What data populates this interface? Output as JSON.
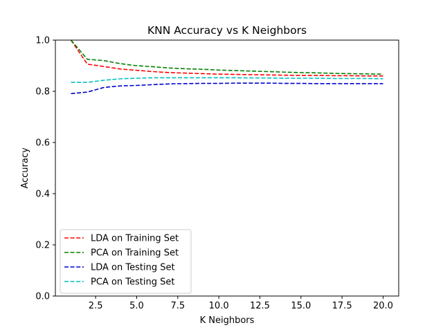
{
  "chart_data": {
    "type": "line",
    "title": "KNN Accuracy vs K Neighbors",
    "xlabel": "K Neighbors",
    "ylabel": "Accuracy",
    "xlim": [
      0.05,
      20.95
    ],
    "ylim": [
      0.0,
      1.0
    ],
    "xticks": [
      2.5,
      5.0,
      7.5,
      10.0,
      12.5,
      15.0,
      17.5,
      20.0
    ],
    "xtick_labels": [
      "2.5",
      "5.0",
      "7.5",
      "10.0",
      "12.5",
      "15.0",
      "17.5",
      "20.0"
    ],
    "yticks": [
      0.0,
      0.2,
      0.4,
      0.6,
      0.8,
      1.0
    ],
    "ytick_labels": [
      "0.0",
      "0.2",
      "0.4",
      "0.6",
      "0.8",
      "1.0"
    ],
    "grid": false,
    "legend_position": "lower-left",
    "x": [
      1,
      2,
      3,
      4,
      5,
      6,
      7,
      8,
      9,
      10,
      11,
      12,
      13,
      14,
      15,
      16,
      17,
      18,
      19,
      20
    ],
    "series": [
      {
        "name": "LDA on Training Set",
        "color": "#ff0000",
        "values": [
          1.0,
          0.906,
          0.897,
          0.887,
          0.882,
          0.877,
          0.873,
          0.871,
          0.869,
          0.867,
          0.866,
          0.865,
          0.864,
          0.863,
          0.862,
          0.862,
          0.861,
          0.861,
          0.86,
          0.86
        ]
      },
      {
        "name": "PCA on Training Set",
        "color": "#008000",
        "values": [
          1.0,
          0.925,
          0.92,
          0.908,
          0.9,
          0.896,
          0.891,
          0.888,
          0.886,
          0.883,
          0.881,
          0.879,
          0.877,
          0.875,
          0.873,
          0.872,
          0.87,
          0.869,
          0.868,
          0.867
        ]
      },
      {
        "name": "LDA on Testing Set",
        "color": "#0000cc",
        "values": [
          0.791,
          0.797,
          0.815,
          0.821,
          0.823,
          0.826,
          0.829,
          0.83,
          0.831,
          0.831,
          0.832,
          0.832,
          0.832,
          0.831,
          0.831,
          0.83,
          0.83,
          0.83,
          0.83,
          0.83
        ]
      },
      {
        "name": "PCA on Testing Set",
        "color": "#00bfbf",
        "values": [
          0.835,
          0.835,
          0.843,
          0.849,
          0.851,
          0.853,
          0.853,
          0.853,
          0.853,
          0.853,
          0.853,
          0.852,
          0.852,
          0.851,
          0.851,
          0.851,
          0.85,
          0.85,
          0.85,
          0.849
        ]
      }
    ]
  }
}
